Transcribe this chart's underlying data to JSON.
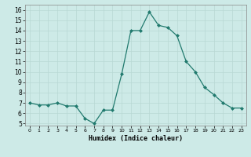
{
  "x": [
    0,
    1,
    2,
    3,
    4,
    5,
    6,
    7,
    8,
    9,
    10,
    11,
    12,
    13,
    14,
    15,
    16,
    17,
    18,
    19,
    20,
    21,
    22,
    23
  ],
  "y": [
    7.0,
    6.8,
    6.8,
    7.0,
    6.7,
    6.7,
    5.5,
    5.0,
    6.3,
    6.3,
    9.8,
    14.0,
    14.0,
    15.8,
    14.5,
    14.3,
    13.5,
    11.0,
    10.0,
    8.5,
    7.8,
    7.0,
    6.5,
    6.5
  ],
  "xlabel": "Humidex (Indice chaleur)",
  "xlim": [
    -0.5,
    23.5
  ],
  "ylim": [
    4.8,
    16.5
  ],
  "yticks": [
    5,
    6,
    7,
    8,
    9,
    10,
    11,
    12,
    13,
    14,
    15,
    16
  ],
  "xticks": [
    0,
    1,
    2,
    3,
    4,
    5,
    6,
    7,
    8,
    9,
    10,
    11,
    12,
    13,
    14,
    15,
    16,
    17,
    18,
    19,
    20,
    21,
    22,
    23
  ],
  "line_color": "#217a6e",
  "bg_color": "#cdeae7",
  "grid_color": "#b8d8d4"
}
